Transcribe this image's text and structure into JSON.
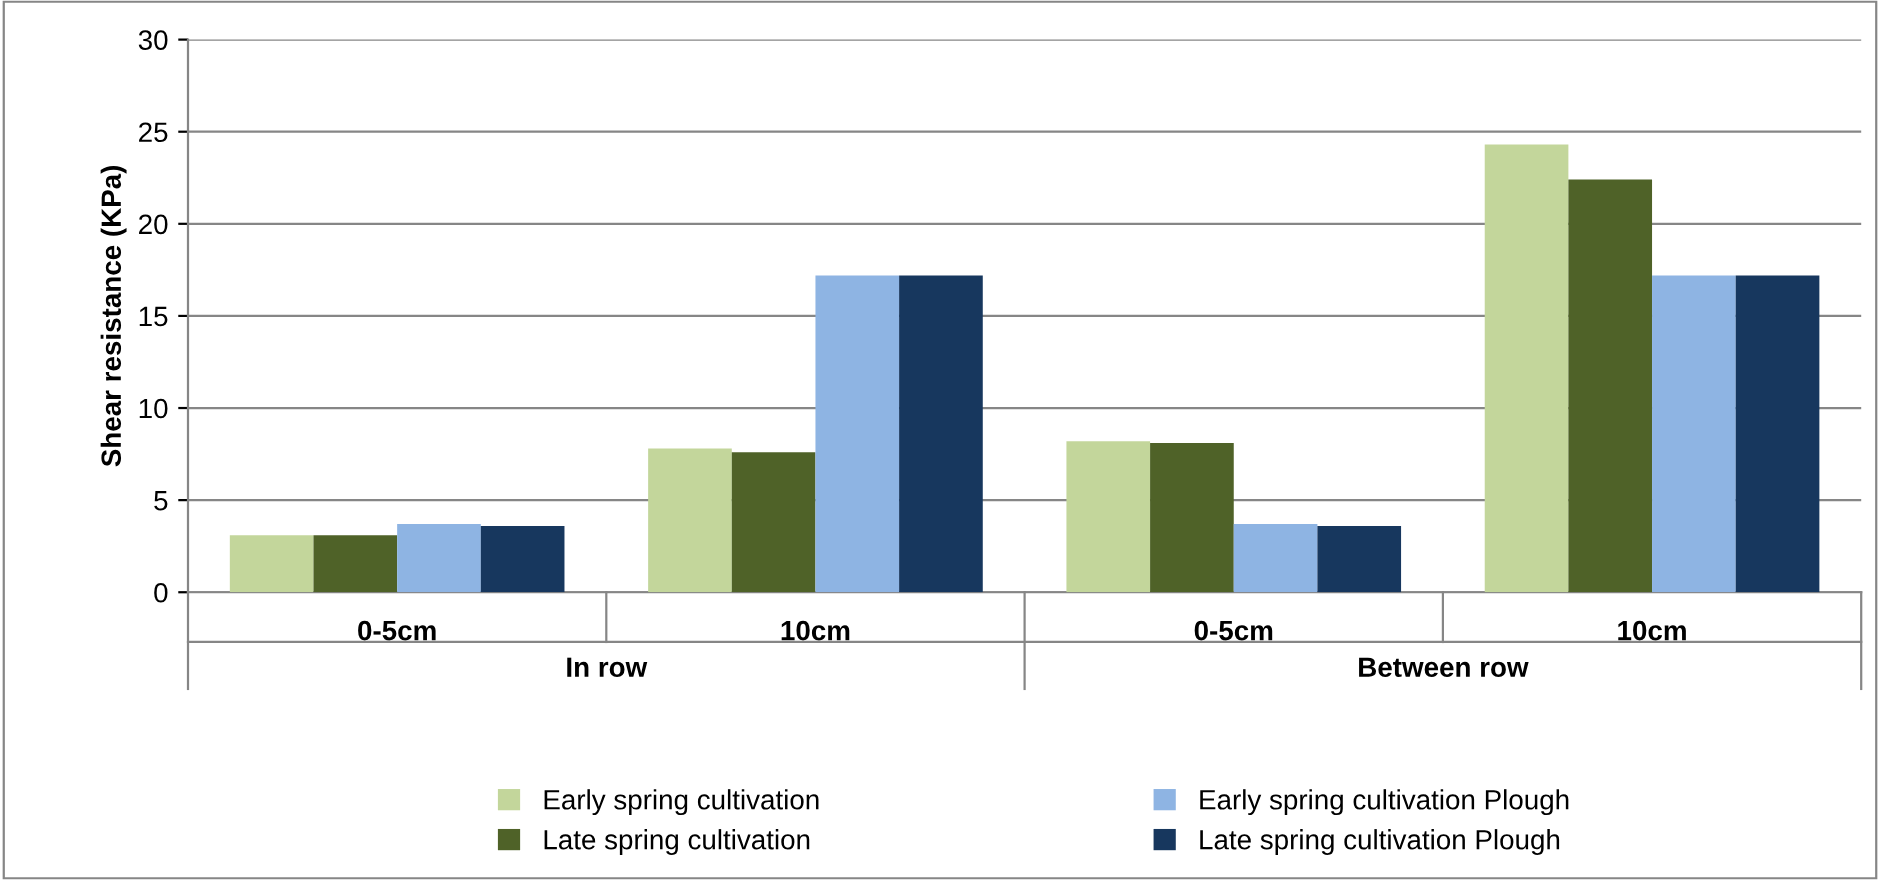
{
  "chart_data": {
    "type": "bar",
    "ylabel": "Shear resistance (KPa)",
    "categories": [
      "0-5cm",
      "10cm",
      "0-5cm",
      "10cm"
    ],
    "annotations": [
      "In row",
      "Between row"
    ],
    "series": [
      {
        "name": "Early spring cultivation",
        "color": "#c3d69b",
        "values": [
          3.1,
          7.8,
          8.2,
          24.3
        ]
      },
      {
        "name": "Late spring cultivation",
        "color": "#4f6228",
        "values": [
          3.1,
          7.6,
          8.1,
          22.4
        ]
      },
      {
        "name": "Early spring cultivation Plough",
        "color": "#8eb4e3",
        "values": [
          3.7,
          17.2,
          3.7,
          17.2
        ]
      },
      {
        "name": "Late spring cultivation Plough",
        "color": "#17375e",
        "values": [
          3.6,
          17.2,
          3.6,
          17.2
        ]
      }
    ],
    "ylim": [
      0,
      30
    ],
    "yticks": [
      0,
      5,
      10,
      15,
      20,
      25,
      30
    ],
    "grid": "y",
    "legend": "bottom"
  }
}
